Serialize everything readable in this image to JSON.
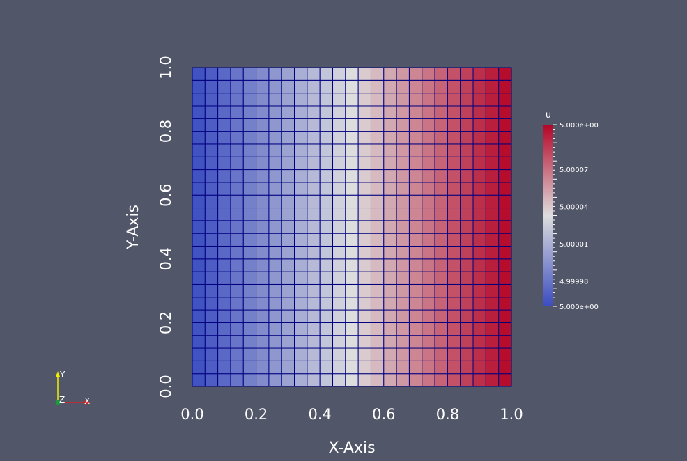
{
  "chart_data": {
    "type": "heatmap",
    "mesh": {
      "nx": 25,
      "ny": 25
    },
    "x_ticks": [
      "0.0",
      "0.2",
      "0.4",
      "0.6",
      "0.8",
      "1.0"
    ],
    "y_ticks": [
      "0.0",
      "0.2",
      "0.4",
      "0.6",
      "0.8",
      "1.0"
    ],
    "x_tick_values": [
      0,
      0.2,
      0.4,
      0.6,
      0.8,
      1.0
    ],
    "y_tick_values": [
      0,
      0.2,
      0.4,
      0.6,
      0.8,
      1.0
    ],
    "xlabel": "X-Axis",
    "ylabel": "Y-Axis",
    "xlim": [
      0,
      1
    ],
    "ylim": [
      0,
      1
    ],
    "field": "u",
    "field_direction": "x",
    "colormap": "cool-to-warm",
    "colormap_stops": [
      "#3b4cc0",
      "#dddddd",
      "#b40426"
    ],
    "grid_line_color": "#00007f",
    "colorbar": {
      "title": "u",
      "max_label": "5.000e+00",
      "min_label": "5.000e+00",
      "labels": [
        "5.00007",
        "5.00004",
        "5.00001",
        "4.99998"
      ],
      "label_fractions": [
        0.755,
        0.55,
        0.345,
        0.14
      ]
    }
  },
  "orientation_axes": {
    "y": "Y",
    "z": "Z",
    "x": "X"
  }
}
